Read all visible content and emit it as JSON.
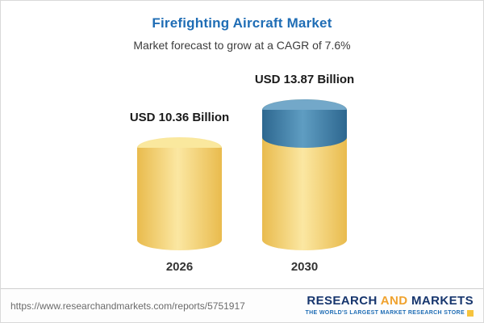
{
  "chart": {
    "title": "Firefighting Aircraft Market",
    "subtitle": "Market forecast to grow at a CAGR of 7.6%"
  },
  "chart_data": {
    "type": "bar",
    "categories": [
      "2026",
      "2030"
    ],
    "values": [
      10.36,
      13.87
    ],
    "value_labels": [
      "USD 10.36 Billion",
      "USD 13.87 Billion"
    ],
    "title": "Firefighting Aircraft Market",
    "subtitle": "Market forecast to grow at a CAGR of 7.6%",
    "unit": "USD Billion",
    "cagr": "7.6%",
    "legend": "none",
    "grid": false,
    "colors": {
      "bar_gold": "#f0c75e",
      "bar_growth_segment_blue": "#3d7fae",
      "title_blue": "#1f6db5"
    }
  },
  "footer": {
    "url": "https://www.researchandmarkets.com/reports/5751917",
    "logo": {
      "research": "RESEARCH",
      "and": "AND",
      "markets": "MARKETS",
      "tagline": "THE WORLD'S LARGEST MARKET RESEARCH STORE"
    }
  }
}
